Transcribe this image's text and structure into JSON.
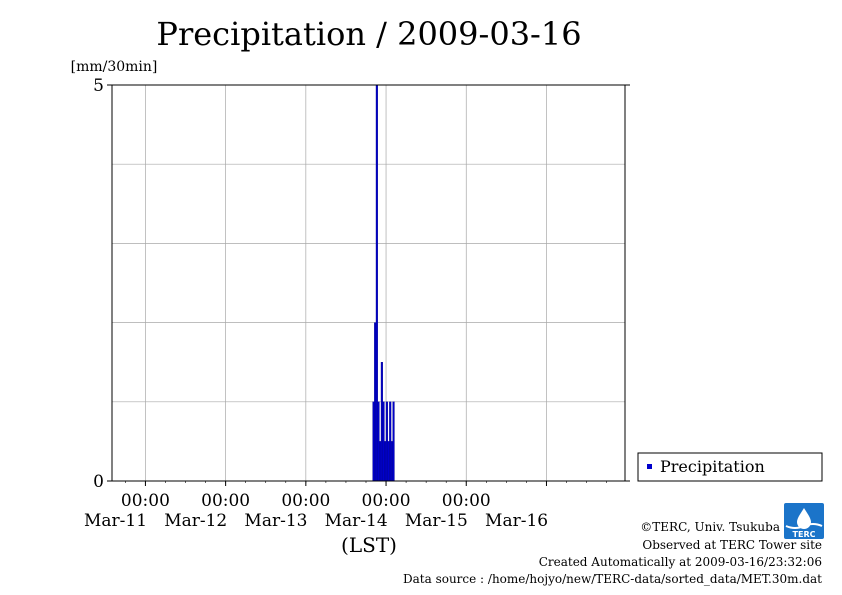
{
  "chart_data": {
    "type": "bar",
    "title": "Precipitation / 2009-03-16",
    "ylabel": "[mm/30min]",
    "xlabel": "(LST)",
    "ylim": [
      0,
      5
    ],
    "y_ticks": [
      "0",
      "5"
    ],
    "xlim": [
      "2009-03-10T14:00",
      "2009-03-16T23:30"
    ],
    "x_ticks": [
      {
        "time": "2009-03-11T00:00",
        "label_time": "00:00",
        "label_date": "Mar-11"
      },
      {
        "time": "2009-03-12T00:00",
        "label_time": "00:00",
        "label_date": "Mar-12"
      },
      {
        "time": "2009-03-13T00:00",
        "label_time": "00:00",
        "label_date": "Mar-13"
      },
      {
        "time": "2009-03-14T00:00",
        "label_time": "00:00",
        "label_date": "Mar-14"
      },
      {
        "time": "2009-03-15T00:00",
        "label_time": "00:00",
        "label_date": "Mar-15"
      },
      {
        "time": "2009-03-16T00:00",
        "label_time": "",
        "label_date": "Mar-16"
      }
    ],
    "grid": true,
    "legend_position": "right-bottom",
    "series": [
      {
        "name": "Precipitation",
        "color": "#0000cc",
        "points": [
          {
            "t": "2009-03-13T20:00",
            "v": 1.0
          },
          {
            "t": "2009-03-13T20:30",
            "v": 2.0
          },
          {
            "t": "2009-03-13T21:00",
            "v": 5.0
          },
          {
            "t": "2009-03-13T21:30",
            "v": 1.0
          },
          {
            "t": "2009-03-13T22:00",
            "v": 0.5
          },
          {
            "t": "2009-03-13T22:30",
            "v": 1.5
          },
          {
            "t": "2009-03-13T23:00",
            "v": 1.0
          },
          {
            "t": "2009-03-13T23:30",
            "v": 0.5
          },
          {
            "t": "2009-03-14T00:00",
            "v": 1.0
          },
          {
            "t": "2009-03-14T00:30",
            "v": 0.5
          },
          {
            "t": "2009-03-14T01:00",
            "v": 1.0
          },
          {
            "t": "2009-03-14T01:30",
            "v": 0.5
          },
          {
            "t": "2009-03-14T02:00",
            "v": 1.0
          }
        ]
      }
    ]
  },
  "credits": {
    "copyright": "©TERC, Univ. Tsukuba",
    "observed": "Observed at TERC Tower site",
    "created": "Created Automatically at 2009-03-16/23:32:06",
    "source": "Data source : /home/hojyo/new/TERC-data/sorted_data/MET.30m.dat",
    "logo_text": "TERC",
    "logo_color": "#1b74c9"
  }
}
